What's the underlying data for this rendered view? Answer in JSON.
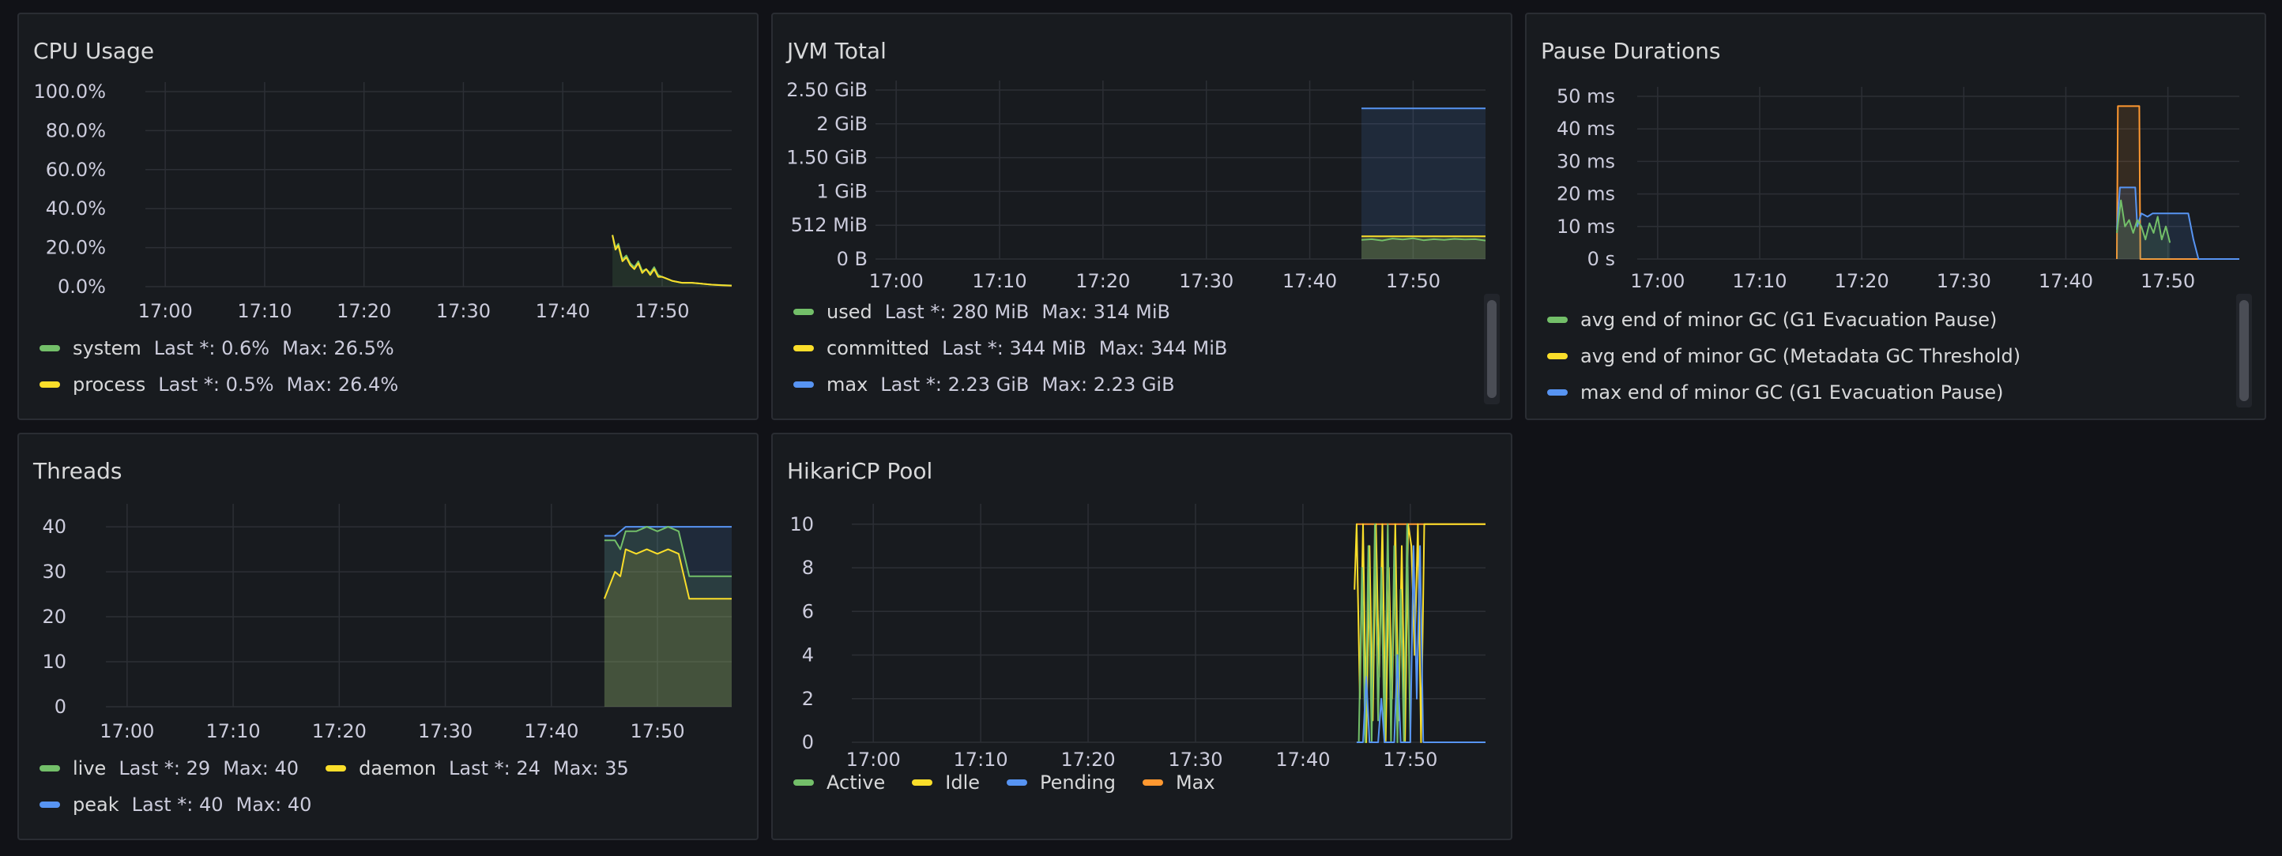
{
  "colors": {
    "green": "#73bf69",
    "yellow": "#fade2a",
    "blue": "#5794f2",
    "orange": "#ff9830",
    "grid": "#2c2f35"
  },
  "panels": {
    "cpu": {
      "title": "CPU Usage",
      "legend": [
        {
          "name": "system",
          "last": "Last *: 0.6%",
          "max": "Max: 26.5%",
          "color": "#73bf69"
        },
        {
          "name": "process",
          "last": "Last *: 0.5%",
          "max": "Max: 26.4%",
          "color": "#fade2a"
        }
      ]
    },
    "jvm": {
      "title": "JVM Total",
      "legend": [
        {
          "name": "used",
          "last": "Last *: 280 MiB",
          "max": "Max: 314 MiB",
          "color": "#73bf69"
        },
        {
          "name": "committed",
          "last": "Last *: 344 MiB",
          "max": "Max: 344 MiB",
          "color": "#fade2a"
        },
        {
          "name": "max",
          "last": "Last *: 2.23 GiB",
          "max": "Max: 2.23 GiB",
          "color": "#5794f2"
        }
      ]
    },
    "pause": {
      "title": "Pause Durations",
      "legend": [
        {
          "name": "avg end of minor GC (G1 Evacuation Pause)",
          "color": "#73bf69"
        },
        {
          "name": "avg end of minor GC (Metadata GC Threshold)",
          "color": "#fade2a"
        },
        {
          "name": "max end of minor GC (G1 Evacuation Pause)",
          "color": "#5794f2"
        }
      ]
    },
    "threads": {
      "title": "Threads",
      "legend": [
        {
          "name": "live",
          "last": "Last *: 29",
          "max": "Max: 40",
          "color": "#73bf69"
        },
        {
          "name": "daemon",
          "last": "Last *: 24",
          "max": "Max: 35",
          "color": "#fade2a"
        },
        {
          "name": "peak",
          "last": "Last *: 40",
          "max": "Max: 40",
          "color": "#5794f2"
        }
      ]
    },
    "hikari": {
      "title": "HikariCP Pool",
      "legend": [
        {
          "name": "Active",
          "color": "#73bf69"
        },
        {
          "name": "Idle",
          "color": "#fade2a"
        },
        {
          "name": "Pending",
          "color": "#5794f2"
        },
        {
          "name": "Max",
          "color": "#ff9830"
        }
      ]
    }
  },
  "chart_data": [
    {
      "id": "cpu",
      "type": "line",
      "title": "CPU Usage",
      "x_ticks": [
        "17:00",
        "17:10",
        "17:20",
        "17:30",
        "17:40",
        "17:50"
      ],
      "y_ticks": [
        "0.0%",
        "20.0%",
        "40.0%",
        "60.0%",
        "80.0%",
        "100.0%"
      ],
      "ylim": [
        0,
        100
      ],
      "xlim_min": [
        -2,
        57
      ],
      "series": [
        {
          "name": "system",
          "color": "#73bf69",
          "fill": true,
          "x": [
            45,
            45.3,
            45.6,
            46,
            46.4,
            46.8,
            47.2,
            47.6,
            48,
            48.4,
            48.8,
            49.2,
            49.6,
            50,
            50.5,
            51,
            52,
            53,
            54,
            55,
            56,
            57
          ],
          "y": [
            26.5,
            20,
            22,
            14,
            16,
            12,
            10,
            13,
            8,
            9,
            7,
            10,
            6,
            5,
            4,
            3,
            2,
            2,
            1.5,
            1,
            0.8,
            0.6
          ]
        },
        {
          "name": "process",
          "color": "#fade2a",
          "fill": false,
          "x": [
            45,
            45.3,
            45.6,
            46,
            46.4,
            46.8,
            47.2,
            47.6,
            48,
            48.4,
            48.8,
            49.2,
            49.6,
            50,
            50.5,
            51,
            52,
            53,
            54,
            55,
            56,
            57
          ],
          "y": [
            26.4,
            19,
            21,
            13,
            15,
            11,
            9,
            12,
            7,
            9,
            6,
            9,
            5,
            5,
            4,
            3,
            2,
            2,
            1.5,
            1,
            0.7,
            0.5
          ]
        }
      ]
    },
    {
      "id": "jvm",
      "type": "area",
      "title": "JVM Total",
      "x_ticks": [
        "17:00",
        "17:10",
        "17:20",
        "17:30",
        "17:40",
        "17:50"
      ],
      "y_ticks": [
        "0 B",
        "512 MiB",
        "1 GiB",
        "1.50 GiB",
        "2 GiB",
        "2.50 GiB"
      ],
      "ylim_mib": [
        0,
        2560
      ],
      "xlim_min": [
        -2,
        57
      ],
      "series": [
        {
          "name": "max",
          "color": "#5794f2",
          "x": [
            45,
            57
          ],
          "y": [
            2283,
            2283
          ]
        },
        {
          "name": "committed",
          "color": "#fade2a",
          "x": [
            45,
            57
          ],
          "y": [
            344,
            344
          ]
        },
        {
          "name": "used",
          "color": "#73bf69",
          "x": [
            45,
            46,
            47,
            48,
            49,
            50,
            51,
            52,
            53,
            54,
            55,
            56,
            57
          ],
          "y": [
            290,
            300,
            280,
            310,
            295,
            314,
            285,
            300,
            290,
            305,
            295,
            300,
            280
          ]
        }
      ]
    },
    {
      "id": "pause",
      "type": "line",
      "title": "Pause Durations",
      "x_ticks": [
        "17:00",
        "17:10",
        "17:20",
        "17:30",
        "17:40",
        "17:50"
      ],
      "y_ticks": [
        "0 s",
        "10 ms",
        "20 ms",
        "30 ms",
        "40 ms",
        "50 ms"
      ],
      "ylim": [
        0,
        50
      ],
      "xlim_min": [
        -2,
        57
      ],
      "series": [
        {
          "name": "avg end of minor GC (Metadata GC Threshold)",
          "color": "#fade2a",
          "orange_alias": "#ff9830",
          "x": [
            45,
            45.1,
            47.2,
            47.3,
            57
          ],
          "y": [
            0,
            47,
            47,
            0,
            0
          ]
        },
        {
          "name": "max end of minor GC (G1 Evacuation Pause)",
          "color": "#5794f2",
          "x": [
            45,
            45.3,
            46.8,
            47,
            47.4,
            48,
            48.5,
            49,
            52,
            52.5,
            53,
            57
          ],
          "y": [
            9,
            22,
            22,
            10,
            14,
            13,
            14,
            14,
            14,
            6,
            0,
            0
          ]
        },
        {
          "name": "avg end of minor GC (G1 Evacuation Pause)",
          "color": "#73bf69",
          "x": [
            45,
            45.4,
            45.8,
            46.2,
            46.6,
            47,
            47.4,
            47.8,
            48.2,
            48.6,
            49,
            49.4,
            49.8,
            50.2
          ],
          "y": [
            8,
            18,
            10,
            12,
            8,
            12,
            10,
            6,
            11,
            8,
            13,
            6,
            10,
            5
          ]
        }
      ]
    },
    {
      "id": "threads",
      "type": "line",
      "title": "Threads",
      "x_ticks": [
        "17:00",
        "17:10",
        "17:20",
        "17:30",
        "17:40",
        "17:50"
      ],
      "y_ticks": [
        "0",
        "10",
        "20",
        "30",
        "40"
      ],
      "ylim": [
        0,
        43
      ],
      "xlim_min": [
        -2,
        57
      ],
      "series": [
        {
          "name": "peak",
          "color": "#5794f2",
          "x": [
            45,
            46,
            47,
            48,
            49,
            50,
            51,
            52,
            53,
            54,
            55,
            56,
            57
          ],
          "y": [
            38,
            38,
            40,
            40,
            40,
            40,
            40,
            40,
            40,
            40,
            40,
            40,
            40
          ]
        },
        {
          "name": "live",
          "color": "#73bf69",
          "x": [
            45,
            46,
            46.5,
            47,
            48,
            49,
            50,
            51,
            52,
            53,
            54,
            55,
            56,
            57
          ],
          "y": [
            37,
            37,
            35,
            39,
            39,
            40,
            39,
            40,
            39,
            29,
            29,
            29,
            29,
            29
          ]
        },
        {
          "name": "daemon",
          "color": "#fade2a",
          "x": [
            45,
            46,
            46.5,
            47,
            48,
            49,
            50,
            51,
            52,
            53,
            54,
            55,
            56,
            57
          ],
          "y": [
            24,
            30,
            29,
            35,
            34,
            35,
            34,
            35,
            34,
            24,
            24,
            24,
            24,
            24
          ]
        }
      ]
    },
    {
      "id": "hikari",
      "type": "line",
      "title": "HikariCP Pool",
      "x_ticks": [
        "17:00",
        "17:10",
        "17:20",
        "17:30",
        "17:40",
        "17:50"
      ],
      "y_ticks": [
        "0",
        "2",
        "4",
        "6",
        "8",
        "10"
      ],
      "ylim": [
        0,
        10.5
      ],
      "xlim_min": [
        -2,
        57
      ],
      "series": [
        {
          "name": "Max",
          "color": "#ff9830",
          "x": [
            45,
            57
          ],
          "y": [
            10,
            10
          ]
        },
        {
          "name": "Idle",
          "color": "#fade2a",
          "x": [
            44.8,
            45,
            45.3,
            45.6,
            45.9,
            46.2,
            46.5,
            46.8,
            47.1,
            47.4,
            47.7,
            48,
            48.3,
            48.6,
            48.9,
            49.2,
            49.5,
            49.8,
            50.1,
            50.4,
            50.7,
            51,
            51.3,
            51.6,
            57
          ],
          "y": [
            7,
            10,
            2,
            10,
            0,
            9,
            1,
            10,
            3,
            10,
            0,
            8,
            2,
            10,
            1,
            9,
            0,
            10,
            9,
            4,
            10,
            0,
            10,
            10,
            10
          ]
        },
        {
          "name": "Active",
          "color": "#73bf69",
          "x": [
            45.2,
            45.5,
            45.8,
            46.1,
            46.4,
            46.7,
            47,
            47.3,
            47.6,
            47.9,
            48.2,
            48.5,
            48.8,
            49.1,
            49.4,
            49.7,
            50
          ],
          "y": [
            0,
            8,
            0,
            9,
            0,
            10,
            1,
            8,
            0,
            10,
            0,
            9,
            0,
            7,
            0,
            10,
            0
          ]
        },
        {
          "name": "Pending",
          "color": "#5794f2",
          "x": [
            45,
            45.6,
            45.9,
            46.2,
            47,
            47.3,
            47.6,
            48.5,
            48.8,
            49.1,
            50,
            50.3,
            50.6,
            50.9,
            51.2,
            57
          ],
          "y": [
            0,
            0,
            3,
            0,
            0,
            2,
            0,
            0,
            4,
            0,
            0,
            9,
            2,
            9,
            0,
            0
          ]
        }
      ]
    }
  ]
}
